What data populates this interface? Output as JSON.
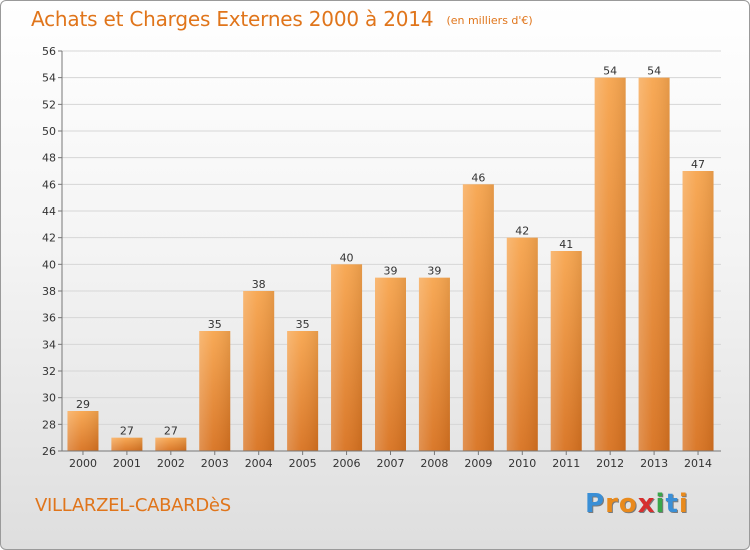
{
  "title": "Achats et Charges Externes 2000 à 2014",
  "unit": "(en milliers d'€)",
  "commune": "VILLARZEL-CABARDèS",
  "logo": {
    "letters": [
      "P",
      "r",
      "o",
      "x",
      "i",
      "t",
      "i"
    ],
    "colors": [
      "#3a8fd6",
      "#e98a1c",
      "#e98a1c",
      "#d62f2f",
      "#3aa64a",
      "#3a8fd6",
      "#e98a1c"
    ]
  },
  "colors": {
    "accent": "#e0751b",
    "bar_light": "#f7a54e",
    "bar_dark": "#d87220"
  },
  "chart_data": {
    "type": "bar",
    "title": "Achats et Charges Externes 2000 à 2014",
    "subtitle": "(en milliers d'€)",
    "categories": [
      "2000",
      "2001",
      "2002",
      "2003",
      "2004",
      "2005",
      "2006",
      "2007",
      "2008",
      "2009",
      "2010",
      "2011",
      "2012",
      "2013",
      "2014"
    ],
    "values": [
      29,
      27,
      27,
      35,
      38,
      35,
      40,
      39,
      39,
      46,
      42,
      41,
      54,
      54,
      47
    ],
    "ylim": [
      26,
      56
    ],
    "yticks": [
      26,
      28,
      30,
      32,
      34,
      36,
      38,
      40,
      42,
      44,
      46,
      48,
      50,
      52,
      54,
      56
    ],
    "grid": true
  }
}
